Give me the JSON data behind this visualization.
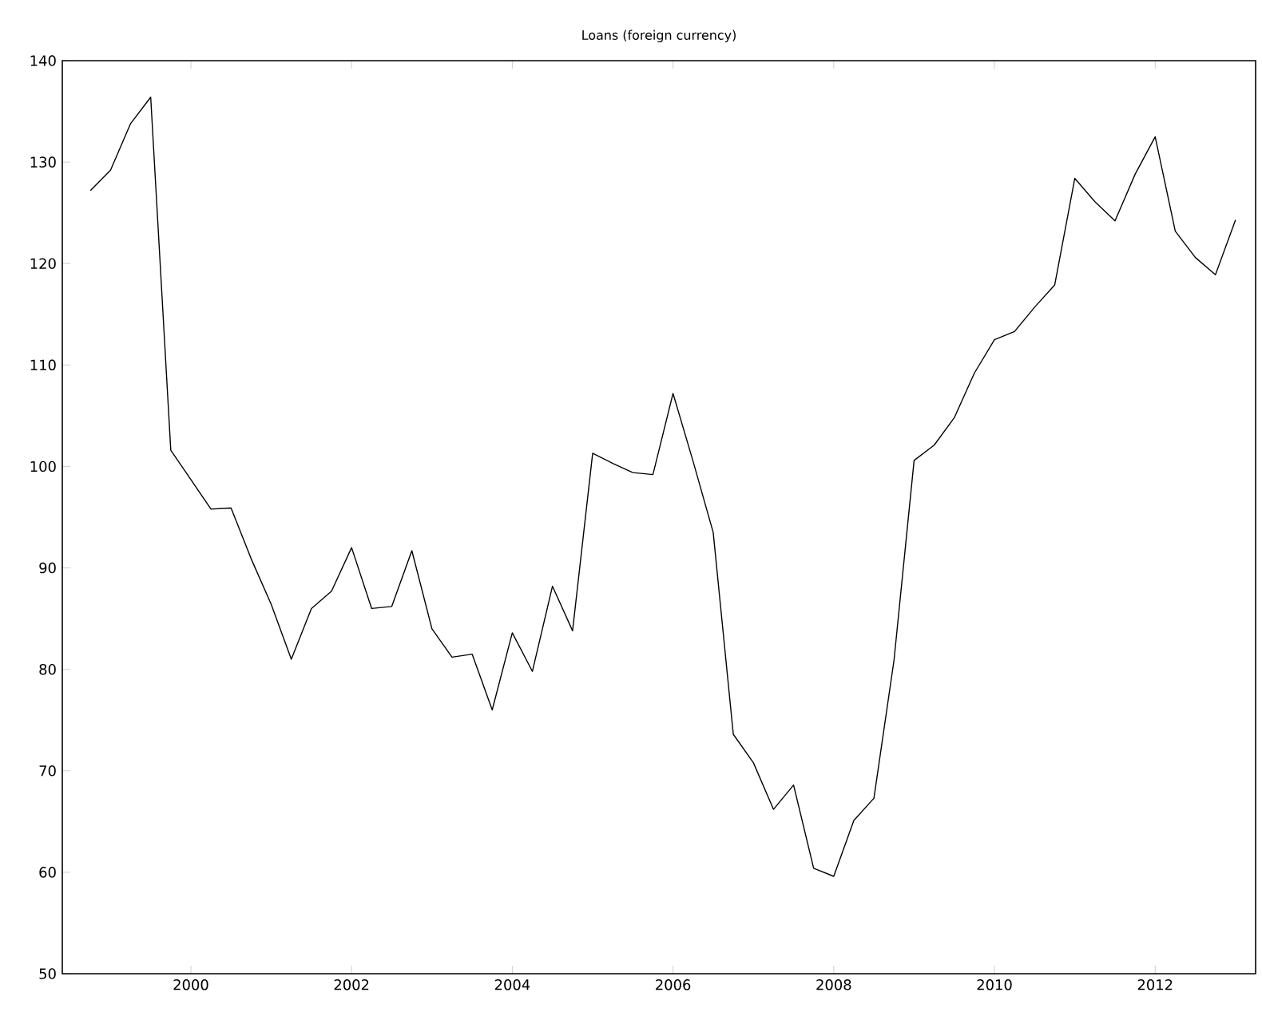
{
  "chart_data": {
    "type": "line",
    "title": "Loans (foreign currency)",
    "x": [
      1998.75,
      1999.0,
      1999.25,
      1999.5,
      1999.75,
      2000.0,
      2000.25,
      2000.5,
      2000.75,
      2001.0,
      2001.25,
      2001.5,
      2001.75,
      2002.0,
      2002.25,
      2002.5,
      2002.75,
      2003.0,
      2003.25,
      2003.5,
      2003.75,
      2004.0,
      2004.25,
      2004.5,
      2004.75,
      2005.0,
      2005.25,
      2005.5,
      2005.75,
      2006.0,
      2006.25,
      2006.5,
      2006.75,
      2007.0,
      2007.25,
      2007.5,
      2007.75,
      2008.0,
      2008.25,
      2008.5,
      2008.75,
      2009.0,
      2009.25,
      2009.5,
      2009.75,
      2010.0,
      2010.25,
      2010.5,
      2010.75,
      2011.0,
      2011.25,
      2011.5,
      2011.75,
      2012.0,
      2012.25,
      2012.5,
      2012.75,
      2013.0
    ],
    "series": [
      {
        "color": "#000000",
        "values": [
          127.2,
          129.2,
          133.8,
          136.4,
          101.6,
          98.7,
          95.8,
          95.9,
          90.9,
          86.4,
          81.0,
          86.0,
          87.7,
          92.0,
          86.0,
          86.2,
          91.7,
          84.0,
          81.2,
          81.5,
          76.0,
          83.6,
          79.8,
          88.2,
          83.8,
          101.3,
          100.3,
          99.4,
          99.2,
          107.2,
          100.5,
          93.5,
          73.6,
          70.8,
          66.2,
          68.6,
          60.4,
          59.6,
          65.1,
          67.3,
          80.9,
          100.6,
          102.1,
          104.8,
          109.2,
          112.5,
          113.3,
          115.7,
          117.9,
          128.4,
          126.1,
          124.2,
          128.8,
          132.5,
          123.2,
          120.6,
          118.9,
          124.3
        ]
      }
    ],
    "xlim": [
      1998.4,
      2013.25
    ],
    "ylim": [
      50,
      140
    ],
    "xticks": [
      2000,
      2002,
      2004,
      2006,
      2008,
      2010,
      2012
    ],
    "yticks": [
      50,
      60,
      70,
      80,
      90,
      100,
      110,
      120,
      130,
      140
    ],
    "marker": "none",
    "line_style": "solid"
  }
}
